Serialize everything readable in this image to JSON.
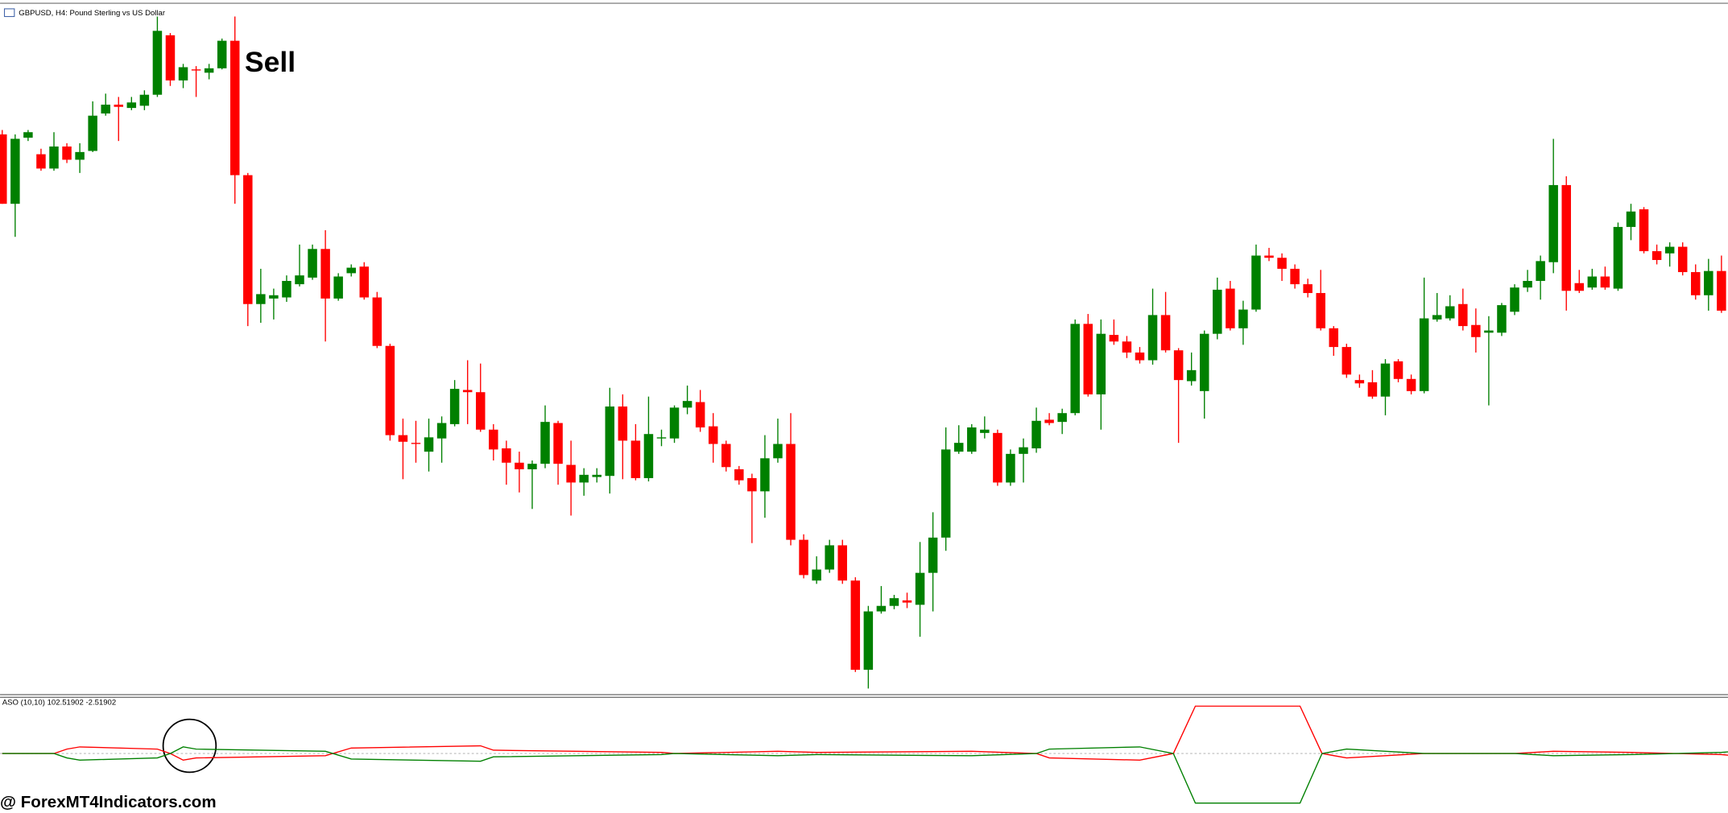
{
  "chart_data": [
    {
      "type": "candlestick",
      "title": "GBPUSD, H4: Pound Sterling vs US Dollar",
      "annotation": "Sell",
      "up_color": "#008000",
      "down_color": "#ff0000",
      "ylim": [
        0,
        630
      ],
      "open": [
        508,
        445,
        505,
        490,
        477,
        497,
        485,
        493,
        527,
        535,
        532,
        534,
        544,
        598,
        557,
        567,
        564,
        568,
        593,
        471,
        354,
        359,
        360,
        372,
        378,
        404,
        359,
        382,
        388,
        360,
        316,
        235,
        228,
        220,
        232,
        245,
        276,
        274,
        240,
        223,
        210,
        204,
        209,
        246,
        208,
        192,
        197,
        198,
        261,
        230,
        196,
        232,
        232,
        260,
        265,
        243,
        227,
        204,
        196,
        184,
        214,
        227,
        140,
        103,
        113,
        135,
        103,
        22,
        75,
        80,
        85,
        81,
        110,
        142,
        220,
        220,
        237,
        237,
        192,
        218,
        223,
        249,
        247,
        255,
        336,
        272,
        326,
        320,
        310,
        303,
        344,
        312,
        284,
        275,
        327,
        368,
        332,
        349,
        398,
        396,
        386,
        372,
        364,
        332,
        315,
        285,
        283,
        270,
        302,
        286,
        275,
        340,
        341,
        354,
        335,
        328,
        328,
        347,
        369,
        375,
        392,
        462,
        373,
        369,
        379,
        368,
        424,
        440,
        402,
        400,
        406,
        383,
        362,
        384,
        343
      ],
      "high": [
        512,
        508,
        512,
        495,
        510,
        500,
        500,
        538,
        545,
        542,
        542,
        548,
        615,
        600,
        572,
        570,
        572,
        595,
        615,
        473,
        386,
        368,
        380,
        408,
        408,
        421,
        382,
        390,
        392,
        365,
        318,
        250,
        248,
        250,
        252,
        285,
        303,
        300,
        245,
        230,
        220,
        212,
        262,
        248,
        230,
        205,
        205,
        278,
        272,
        245,
        270,
        240,
        262,
        280,
        276,
        255,
        230,
        207,
        200,
        235,
        250,
        255,
        145,
        125,
        140,
        140,
        106,
        80,
        98,
        90,
        92,
        138,
        165,
        242,
        244,
        245,
        252,
        240,
        222,
        232,
        260,
        255,
        259,
        340,
        345,
        340,
        340,
        325,
        315,
        368,
        365,
        314,
        310,
        330,
        378,
        375,
        357,
        408,
        405,
        400,
        390,
        377,
        385,
        334,
        318,
        290,
        294,
        304,
        304,
        290,
        378,
        364,
        362,
        368,
        350,
        343,
        355,
        372,
        385,
        398,
        504,
        470,
        385,
        386,
        388,
        428,
        445,
        442,
        408,
        410,
        410,
        390,
        395,
        398,
        345
      ],
      "low": [
        445,
        415,
        502,
        475,
        475,
        482,
        473,
        492,
        525,
        502,
        530,
        530,
        542,
        552,
        550,
        542,
        558,
        567,
        445,
        334,
        337,
        340,
        356,
        370,
        376,
        320,
        357,
        379,
        358,
        314,
        230,
        195,
        210,
        202,
        210,
        243,
        245,
        238,
        212,
        190,
        183,
        168,
        205,
        190,
        162,
        180,
        192,
        182,
        195,
        194,
        193,
        225,
        228,
        254,
        238,
        210,
        202,
        190,
        137,
        160,
        210,
        135,
        105,
        100,
        110,
        100,
        20,
        5,
        73,
        77,
        78,
        52,
        75,
        130,
        218,
        218,
        232,
        189,
        189,
        192,
        219,
        244,
        236,
        253,
        270,
        240,
        317,
        305,
        300,
        299,
        310,
        228,
        280,
        250,
        322,
        330,
        317,
        347,
        393,
        375,
        368,
        360,
        330,
        307,
        287,
        278,
        268,
        253,
        283,
        272,
        273,
        338,
        339,
        330,
        310,
        262,
        325,
        344,
        365,
        358,
        382,
        348,
        364,
        367,
        367,
        366,
        412,
        400,
        390,
        388,
        380,
        358,
        348,
        346,
        305
      ],
      "close": [
        445,
        504,
        510,
        477,
        497,
        485,
        492,
        525,
        535,
        533,
        537,
        544,
        602,
        557,
        569,
        566,
        568,
        593,
        471,
        354,
        363,
        362,
        375,
        380,
        404,
        359,
        379,
        387,
        360,
        316,
        235,
        229,
        227,
        233,
        246,
        277,
        274,
        240,
        222,
        210,
        204,
        209,
        247,
        209,
        192,
        199,
        199,
        261,
        230,
        196,
        236,
        233,
        260,
        266,
        242,
        227,
        206,
        194,
        184,
        214,
        227,
        140,
        108,
        113,
        135,
        103,
        22,
        75,
        80,
        87,
        83,
        110,
        142,
        222,
        228,
        242,
        240,
        192,
        218,
        224,
        248,
        246,
        255,
        336,
        272,
        327,
        320,
        310,
        303,
        344,
        312,
        285,
        294,
        327,
        367,
        332,
        349,
        398,
        396,
        386,
        372,
        364,
        332,
        315,
        290,
        282,
        270,
        300,
        286,
        275,
        341,
        344,
        352,
        334,
        324,
        330,
        353,
        369,
        375,
        393,
        462,
        366,
        366,
        379,
        369,
        424,
        438,
        402,
        394,
        406,
        383,
        362,
        384,
        348,
        316
      ]
    },
    {
      "type": "line",
      "title": "ASO (10,10) 102.51902 -2.51902",
      "xlim": [
        0,
        134
      ],
      "ylim": [
        -50,
        50
      ],
      "x": [
        0,
        4,
        5,
        6,
        12,
        13,
        14,
        15,
        25,
        27,
        37,
        38,
        51,
        52,
        60,
        63,
        75,
        80,
        81,
        88,
        90.6,
        92.3,
        100.4,
        102.1,
        104,
        110,
        117,
        120,
        126,
        133,
        134
      ],
      "series": [
        {
          "color": "#ff0000",
          "values": [
            0,
            0,
            4,
            6,
            4,
            0,
            -6,
            -4,
            -2,
            5,
            7,
            3,
            1,
            0,
            2,
            1,
            2,
            0,
            -4,
            -6,
            0,
            43,
            43,
            0,
            -4,
            0,
            0,
            2,
            1,
            -1,
            -2
          ]
        },
        {
          "color": "#008000",
          "values": [
            0,
            0,
            -4,
            -6,
            -4,
            0,
            6,
            4,
            2,
            -5,
            -7,
            -3,
            -1,
            0,
            -2,
            -1,
            -2,
            0,
            4,
            6,
            0,
            -45,
            -45,
            0,
            4,
            0,
            0,
            -2,
            -1,
            1,
            2
          ]
        }
      ]
    }
  ],
  "watermark": "@ ForexMT4Indicators.com"
}
